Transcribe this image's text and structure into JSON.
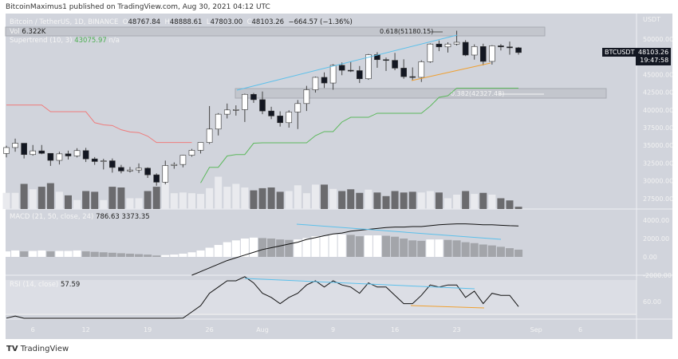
{
  "header": {
    "published": "BitcoinMaximus1 published on TradingView.com, Aug 30, 2021 04:12 UTC"
  },
  "legend": {
    "symbol": "Bitcoin / TetherUS, 1D, BINANCE",
    "o_label": "O",
    "o": "48767.84",
    "h_label": "H",
    "h": "48888.61",
    "l_label": "L",
    "l": "47803.00",
    "c_label": "C",
    "c": "48103.26",
    "change": "−664.57 (−1.36%)",
    "vol_label": "Vol",
    "vol": "6.322K",
    "st_label": "Supertrend (10, 3)",
    "st": "43075.97",
    "st_na": "n/a",
    "macd_label": "MACD (21, 50, close, 24)",
    "macd_v1": "786.63",
    "macd_v2": "3373.35",
    "rsi_label": "RSI (14, close)",
    "rsi": "57.59"
  },
  "price_tag": {
    "symbol": "BTCUSDT",
    "price": "48103.26",
    "countdown": "19:47:58"
  },
  "fib": {
    "upper": "0.618(51180.15)",
    "lower": "0.382(42327.48)"
  },
  "footer": {
    "logo": "TradingView"
  },
  "colors": {
    "bg": "#d1d4dc",
    "up": "#ffffff",
    "down": "#131722",
    "st_down": "#ef7b7b",
    "st_up": "#5cb85c",
    "trend_blue": "#5bc0eb",
    "trend_orange": "#f0a030"
  },
  "chart_data": [
    {
      "type": "candlestick",
      "title": "Bitcoin / TetherUS, 1D, BINANCE",
      "yaxis_unit": "USDT",
      "scale": "linear",
      "ylim": [
        26000,
        52500
      ],
      "yticks": [
        "50000.00",
        "45000.00",
        "42500.00",
        "40000.00",
        "37500.00",
        "35000.00",
        "32500.00",
        "30000.00",
        "27500.00"
      ],
      "xticks": [
        {
          "label": "6",
          "date": "2021-07-06"
        },
        {
          "label": "12",
          "date": "2021-07-12"
        },
        {
          "label": "19",
          "date": "2021-07-19"
        },
        {
          "label": "26",
          "date": "2021-07-26"
        },
        {
          "label": "Aug",
          "date": "2021-08-01"
        },
        {
          "label": "9",
          "date": "2021-08-09"
        },
        {
          "label": "16",
          "date": "2021-08-16"
        },
        {
          "label": "23",
          "date": "2021-08-23"
        },
        {
          "label": "Sep",
          "date": "2021-09-01"
        },
        {
          "label": "6",
          "date": "2021-09-06"
        }
      ],
      "start_date": "2021-07-03",
      "ohlc": [
        [
          33850,
          34950,
          33300,
          34690
        ],
        [
          34690,
          35950,
          34100,
          35300
        ],
        [
          35300,
          35300,
          33150,
          33700
        ],
        [
          33700,
          35050,
          33550,
          34220
        ],
        [
          34220,
          35050,
          33750,
          33870
        ],
        [
          33870,
          33900,
          32100,
          32880
        ],
        [
          32880,
          34100,
          32300,
          33800
        ],
        [
          33800,
          34250,
          33000,
          33500
        ],
        [
          33500,
          34600,
          33300,
          34260
        ],
        [
          34260,
          34650,
          32650,
          33090
        ],
        [
          33090,
          33350,
          32250,
          32720
        ],
        [
          32720,
          33100,
          31600,
          32820
        ],
        [
          32820,
          33150,
          31150,
          31880
        ],
        [
          31880,
          32250,
          31050,
          31380
        ],
        [
          31380,
          31950,
          31170,
          31520
        ],
        [
          31520,
          32450,
          31100,
          31780
        ],
        [
          31780,
          31900,
          30400,
          30840
        ],
        [
          30840,
          31050,
          29300,
          29800
        ],
        [
          29800,
          32850,
          29500,
          32150
        ],
        [
          32150,
          32600,
          31700,
          32300
        ],
        [
          32300,
          33650,
          31900,
          33600
        ],
        [
          33600,
          34500,
          33400,
          34300
        ],
        [
          34300,
          35400,
          33850,
          35400
        ],
        [
          35400,
          40550,
          35200,
          37300
        ],
        [
          37300,
          39550,
          36400,
          39400
        ],
        [
          39400,
          40900,
          38800,
          40000
        ],
        [
          40000,
          40650,
          39200,
          40050
        ],
        [
          40050,
          42300,
          38300,
          42200
        ],
        [
          42200,
          42400,
          41000,
          41450
        ],
        [
          41450,
          42600,
          39400,
          39850
        ],
        [
          39850,
          40450,
          38700,
          39150
        ],
        [
          39150,
          39800,
          37650,
          38200
        ],
        [
          38200,
          39950,
          37500,
          39700
        ],
        [
          39700,
          41400,
          37300,
          40900
        ],
        [
          40900,
          43400,
          39850,
          42850
        ],
        [
          42850,
          44700,
          42450,
          44600
        ],
        [
          44600,
          45300,
          43100,
          43800
        ],
        [
          43800,
          46450,
          42850,
          46300
        ],
        [
          46300,
          46700,
          44900,
          45600
        ],
        [
          45600,
          46800,
          45350,
          45550
        ],
        [
          45550,
          46200,
          43800,
          44400
        ],
        [
          44400,
          47900,
          44250,
          47800
        ],
        [
          47800,
          48150,
          45950,
          47100
        ],
        [
          47100,
          47400,
          45500,
          47000
        ],
        [
          47000,
          48050,
          45600,
          45900
        ],
        [
          45900,
          47150,
          44400,
          44700
        ],
        [
          44700,
          46000,
          44200,
          44600
        ],
        [
          44600,
          47000,
          43950,
          46800
        ],
        [
          46800,
          49400,
          46650,
          49300
        ],
        [
          49300,
          49800,
          48300,
          48900
        ],
        [
          48900,
          49550,
          48100,
          49300
        ],
        [
          49300,
          51180,
          49100,
          49550
        ],
        [
          49550,
          49850,
          47600,
          47750
        ],
        [
          47750,
          49250,
          47100,
          48950
        ],
        [
          48950,
          49350,
          46300,
          46850
        ],
        [
          46850,
          49150,
          46400,
          49050
        ],
        [
          49050,
          49300,
          48400,
          48900
        ],
        [
          48900,
          49650,
          47800,
          48770
        ],
        [
          48767.84,
          48888.61,
          47803,
          48103.26
        ]
      ],
      "volume_k": [
        45,
        45,
        70,
        55,
        62,
        72,
        48,
        38,
        25,
        50,
        48,
        25,
        62,
        60,
        30,
        30,
        50,
        62,
        75,
        44,
        46,
        44,
        42,
        58,
        90,
        62,
        70,
        60,
        52,
        58,
        60,
        48,
        50,
        66,
        44,
        68,
        68,
        56,
        50,
        55,
        45,
        54,
        46,
        36,
        50,
        46,
        48,
        46,
        50,
        46,
        30,
        40,
        50,
        42,
        45,
        40,
        30,
        24,
        6.322
      ],
      "supertrend": [
        40700,
        40700,
        40700,
        40700,
        40700,
        39750,
        39750,
        39750,
        39750,
        39750,
        38200,
        37900,
        37800,
        37200,
        36900,
        36800,
        36300,
        35400,
        35400,
        35400,
        35400,
        35400,
        29700,
        31900,
        31900,
        33500,
        33700,
        33700,
        35300,
        35360,
        35360,
        35360,
        35360,
        35360,
        35360,
        36370,
        36940,
        36940,
        38290,
        38960,
        38960,
        38960,
        39530,
        39530,
        39530,
        39530,
        39530,
        39530,
        40540,
        41780,
        42000,
        43075,
        43075,
        43075,
        43075,
        43075,
        43075,
        43075,
        43075.97
      ],
      "supertrend_flip_index": 22,
      "fib_levels": [
        {
          "ratio": 0.618,
          "price": 51180.15
        },
        {
          "ratio": 0.382,
          "price": 42327.48
        }
      ]
    },
    {
      "type": "bar+line",
      "title": "MACD (21, 50, close, 24)",
      "ylim": [
        -2000,
        5000
      ],
      "yticks": [
        "4000.00",
        "2000.00",
        "0.00",
        "-2000.00"
      ],
      "histogram": [
        600,
        700,
        600,
        650,
        700,
        600,
        650,
        650,
        700,
        600,
        550,
        500,
        450,
        400,
        350,
        300,
        250,
        150,
        200,
        250,
        350,
        500,
        700,
        1000,
        1300,
        1600,
        1800,
        2000,
        2100,
        2050,
        2000,
        1900,
        1850,
        1900,
        2050,
        2250,
        2300,
        2450,
        2450,
        2400,
        2250,
        2350,
        2350,
        2300,
        2200,
        2000,
        1800,
        1750,
        1900,
        1900,
        1850,
        1800,
        1600,
        1500,
        1350,
        1250,
        1100,
        950,
        786.63
      ],
      "line": [
        null,
        null,
        null,
        null,
        null,
        null,
        null,
        null,
        null,
        null,
        null,
        null,
        null,
        null,
        null,
        null,
        null,
        null,
        null,
        null,
        null,
        -2000,
        -1600,
        -1200,
        -800,
        -400,
        -100,
        200,
        500,
        800,
        1000,
        1200,
        1400,
        1600,
        1900,
        2100,
        2300,
        2500,
        2600,
        2800,
        2900,
        3000,
        3100,
        3200,
        3250,
        3250,
        3300,
        3300,
        3400,
        3500,
        3550,
        3600,
        3600,
        3550,
        3500,
        3500,
        3450,
        3400,
        3373.35
      ]
    },
    {
      "type": "line",
      "title": "RSI (14, close)",
      "yticks": [
        "60.00"
      ],
      "values": [
        52,
        53,
        49,
        50,
        50,
        48,
        50,
        50,
        51,
        48,
        47,
        46,
        45,
        44,
        44,
        44,
        43,
        40,
        49,
        50,
        52,
        55,
        58,
        64,
        67,
        70,
        70,
        72,
        69,
        64,
        62,
        59,
        62,
        64,
        68,
        70,
        67,
        70,
        68,
        67,
        64,
        69,
        67,
        67,
        63,
        59,
        59,
        63,
        68,
        67,
        68,
        68,
        62,
        65,
        59,
        64,
        63,
        63,
        57.59
      ]
    }
  ]
}
